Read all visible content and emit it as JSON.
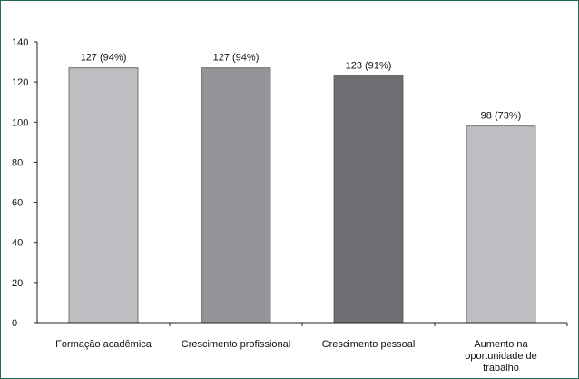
{
  "chart_data": {
    "type": "bar",
    "categories": [
      [
        "Formação acadêmica"
      ],
      [
        "Crescimento profissional"
      ],
      [
        "Crescimento pessoal"
      ],
      [
        "Aumento na",
        "oportunidade de",
        "trabalho"
      ]
    ],
    "values": [
      127,
      127,
      123,
      98
    ],
    "data_labels": [
      "127 (94%)",
      "127 (94%)",
      "123 (91%)",
      "98 (73%)"
    ],
    "bar_colors": [
      "#bdbec2",
      "#939598",
      "#6d6e71",
      "#bdbec2"
    ],
    "ylim": [
      0,
      140
    ],
    "yticks": [
      0,
      20,
      40,
      60,
      80,
      100,
      120,
      140
    ],
    "grid": false,
    "legend": "none"
  },
  "colors": {
    "frame_border": "#1f6b4f",
    "axis": "#222222"
  }
}
